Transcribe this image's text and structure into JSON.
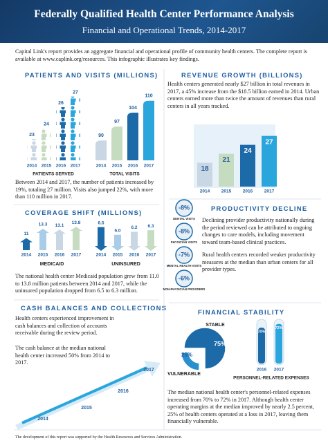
{
  "header": {
    "title": "Federally Qualified Health Center Performance Analysis",
    "subtitle": "Financial and Operational Trends, 2014-2017"
  },
  "intro": "Capital Link's report provides an aggregate financial and operational profile of community health centers. The complete report is available at www.caplink.org/resources. This infographic illustrates key findings.",
  "patients_visits": {
    "heading": "PATIENTS AND VISITS (MILLIONS)",
    "years": [
      "2014",
      "2015",
      "2016",
      "2017"
    ],
    "colors": [
      "#c9d6e3",
      "#c6dcc0",
      "#1d6aa8",
      "#2ba6dc"
    ],
    "patients": {
      "label": "PATIENTS SERVED",
      "values": [
        23,
        24,
        26,
        27
      ],
      "ylim": [
        21,
        27.5
      ]
    },
    "visits": {
      "label": "TOTAL VISITS",
      "values": [
        90,
        97,
        104,
        110
      ],
      "ylim": [
        80,
        112
      ]
    },
    "text": "Between 2014 and 2017, the number of patients increased by 19%, totaling 27 million. Visits also jumped 22%, with more than 110 million in 2017."
  },
  "revenue": {
    "heading": "REVENUE GROWTH (BILLIONS)",
    "text": "Health centers generated nearly $27 billion in total revenues in 2017, a 45% increase from the $18.5 billion earned in 2014. Urban centers earned more than twice the amount of revenues than rural centers in all years tracked.",
    "years": [
      "2014",
      "2015",
      "2016",
      "2017"
    ],
    "values": [
      18,
      21,
      24,
      27
    ],
    "ylim": [
      10,
      29
    ],
    "colors": [
      "#c9d6e3",
      "#c6dcc0",
      "#1d6aa8",
      "#2ba6dc"
    ]
  },
  "coverage": {
    "heading": "COVERAGE SHIFT (MILLIONS)",
    "years": [
      "2014",
      "2015",
      "2016",
      "2017"
    ],
    "colors": [
      "#1d6aa8",
      "#a9cde8",
      "#c9d6e3",
      "#c6dcc0"
    ],
    "medicaid": {
      "label": "MEDICAID",
      "values": [
        11,
        13.3,
        13.1,
        13.8
      ],
      "ylim": [
        8,
        14.5
      ]
    },
    "uninsured": {
      "label": "UNINSURED",
      "values": [
        6.5,
        6.0,
        6.2,
        6.3
      ],
      "value_labels": [
        "6.5",
        "6.0",
        "6.2",
        "6.3"
      ],
      "ylim": [
        5,
        6.8
      ]
    },
    "text": "The national health center Medicaid population grew from 11.0 to 13.8 million patients between 2014 and 2017, while the uninsured population dropped from 6.5 to 6.3 million."
  },
  "productivity": {
    "heading": "PRODUCTIVITY DECLINE",
    "items": [
      {
        "value": "-8%",
        "label": "DENTAL VISITS"
      },
      {
        "value": "-8%",
        "label": "PHYSICIAN VISITS"
      },
      {
        "value": "-7%",
        "label": "MENTAL HEALTH VISITS"
      },
      {
        "value": "-6%",
        "label": "NON-PHYSICIAN PROVIDERS"
      }
    ],
    "paragraphs": [
      "Declining provider productivity nationally during the period reviewed can be attributed to ongoing changes to care models, including movement toward team-based clinical practices.",
      "Rural health centers recorded weaker productivity measures at the median than urban centers for all provider types."
    ]
  },
  "cash": {
    "heading": "CASH BALANCES AND COLLECTIONS",
    "paragraphs": [
      "Health centers experienced improvement in cash balances and collection of accounts receivable during the review period.",
      "The cash balance at the median national health center increased 50% from 2014 to 2017."
    ],
    "years": [
      "2014",
      "2015",
      "2016",
      "2017"
    ]
  },
  "stability": {
    "heading": "FINANCIAL STABILITY",
    "donut": {
      "labels": [
        "VULNERABLE",
        "STABLE"
      ],
      "values": [
        25,
        75
      ],
      "value_labels": [
        "25%",
        "75%"
      ],
      "colors": [
        "#2a8fcf",
        "#1d6aa8"
      ]
    },
    "personnel": {
      "label": "PERSONNEL-RELATED EXPENSES",
      "years": [
        "2016",
        "2017"
      ],
      "values": [
        70,
        72
      ],
      "value_labels": [
        "70%",
        "72%"
      ],
      "ylim": [
        50,
        73
      ]
    },
    "text": "The median national health center's personnel-related expenses increased from 70% to 72% in 2017. Although health center operating margins at the median improved by nearly 2.5 percent, 25% of health centers operated at a loss in 2017, leaving them financially vulnerable."
  },
  "footer": "The development of this report was supported by the Health Resources and Services Administration."
}
